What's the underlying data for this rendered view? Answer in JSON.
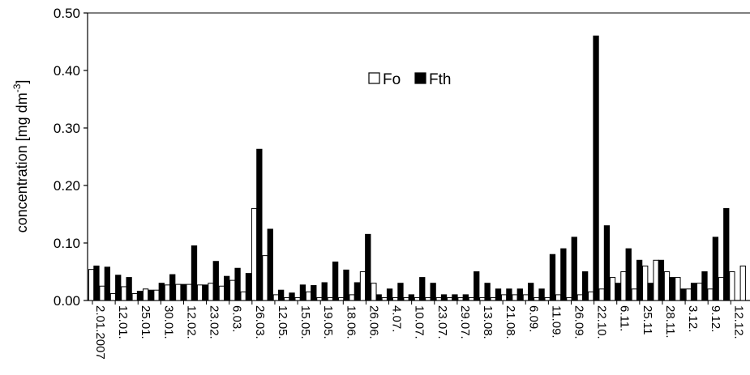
{
  "chart_data": {
    "type": "bar",
    "ylabel": "concentration [mg dm",
    "ylabel_superscript": "-3",
    "ylabel_close": "]",
    "ylim": [
      0,
      0.5
    ],
    "yticks": [
      "0.00",
      "0.10",
      "0.20",
      "0.30",
      "0.40",
      "0.50"
    ],
    "legend_placement": "top-center",
    "colors": {
      "Fo": "#ffffff",
      "Fth": "#000000",
      "edge": "#000000"
    },
    "x_tick_labels": [
      "2.01.2007",
      "12.01.",
      "25.01.",
      "30.01.",
      "12.02.",
      "23.02.",
      "6.03.",
      "26.03.",
      "12.05.",
      "15.05.",
      "19.05.",
      "18.06.",
      "26.06.",
      "4.07.",
      "10.07.",
      "23.07.",
      "29.07.",
      "13.08.",
      "21.08.",
      "6.09.",
      "11.09.",
      "26.09.",
      "22.10.",
      "6.11.",
      "25.11",
      "28.11.",
      "3.12.",
      "9.12.",
      "12.12."
    ],
    "series": [
      {
        "name": "Fo",
        "values": [
          0.054,
          0.025,
          0.012,
          0.024,
          0.012,
          0.02,
          0.018,
          0.027,
          0.028,
          0.028,
          0.027,
          0.03,
          0.025,
          0.035,
          0.015,
          0.16,
          0.078,
          0.01,
          0.005,
          0.005,
          0.015,
          0.005,
          0.005,
          0.005,
          0.01,
          0.05,
          0.03,
          0.005,
          0.005,
          0.005,
          0.005,
          0.005,
          0.005,
          0.005,
          0.005,
          0.005,
          0.005,
          0.005,
          0.01,
          0.01,
          0.01,
          0.005,
          0.005,
          0.01,
          0.005,
          0.01,
          0.015,
          0.02,
          0.04,
          0.05,
          0.02,
          0.06,
          0.07,
          0.05,
          0.04,
          0.02,
          0.03,
          0.02,
          0.04,
          0.05,
          0.06
        ]
      },
      {
        "name": "Fth",
        "values": [
          0.06,
          0.058,
          0.044,
          0.04,
          0.016,
          0.018,
          0.03,
          0.045,
          0.028,
          0.095,
          0.027,
          0.068,
          0.042,
          0.056,
          0.047,
          0.263,
          0.124,
          0.018,
          0.013,
          0.027,
          0.026,
          0.031,
          0.067,
          0.053,
          0.031,
          0.115,
          0.01,
          0.02,
          0.03,
          0.01,
          0.04,
          0.03,
          0.01,
          0.01,
          0.01,
          0.05,
          0.03,
          0.02,
          0.02,
          0.02,
          0.03,
          0.02,
          0.08,
          0.09,
          0.11,
          0.05,
          0.46,
          0.13,
          0.03,
          0.09,
          0.07,
          0.03,
          0.07,
          0.04,
          0.02,
          0.03,
          0.05,
          0.11,
          0.16,
          0.0,
          0.0
        ]
      }
    ]
  }
}
